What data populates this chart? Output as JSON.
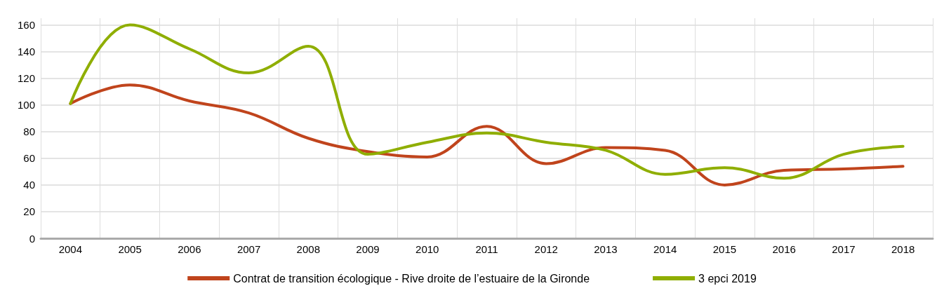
{
  "chart_data": {
    "type": "line",
    "categories": [
      "2004",
      "2005",
      "2006",
      "2007",
      "2008",
      "2009",
      "2010",
      "2011",
      "2012",
      "2013",
      "2014",
      "2015",
      "2016",
      "2017",
      "2018"
    ],
    "series": [
      {
        "name": "Contrat de transition écologique - Rive droite de l’estuaire de la Gironde",
        "color": "#c0441c",
        "values": [
          101,
          115,
          103,
          94,
          75,
          65,
          61,
          84,
          56,
          68,
          66,
          40,
          51,
          52,
          54
        ]
      },
      {
        "name": "3 epci 2019",
        "color": "#8fae00",
        "values": [
          101,
          160,
          142,
          124,
          144,
          63,
          72,
          79,
          72,
          66,
          48,
          53,
          45,
          63,
          69
        ]
      }
    ],
    "ylim": [
      0,
      165
    ],
    "yticks": [
      0,
      20,
      40,
      60,
      80,
      100,
      120,
      140,
      160
    ],
    "grid": true,
    "legend": "bottom",
    "marker": "none",
    "line_style": "solid"
  }
}
